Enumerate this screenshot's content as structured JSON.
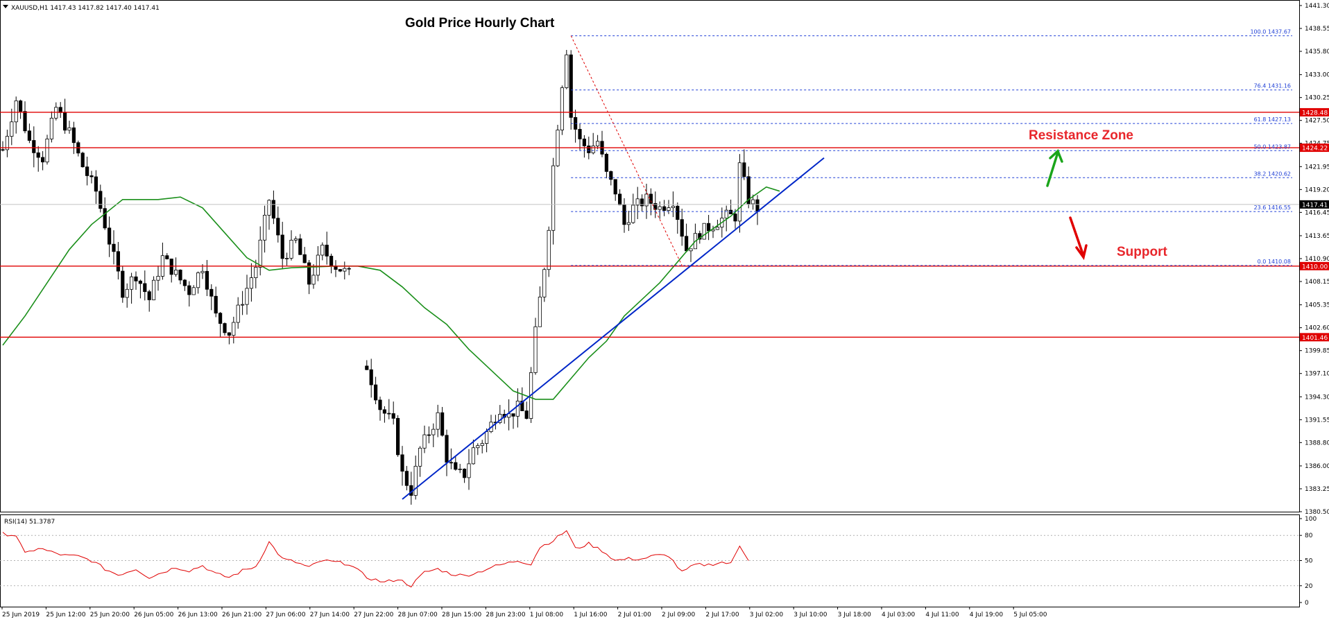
{
  "header": {
    "symbol_line": "XAUUSD,H1  1417.43 1417.82 1417.40 1417.41"
  },
  "chart_data": [
    {
      "type": "candlestick",
      "title": "Gold Price Hourly Chart",
      "symbol": "XAUUSD",
      "timeframe": "H1",
      "last_ohlc": {
        "open": 1417.43,
        "high": 1417.82,
        "low": 1417.4,
        "close": 1417.41
      },
      "last_price_label": "1417.41",
      "ylim": [
        1380.5,
        1441.3
      ],
      "yticks": [
        "1441.30",
        "1438.55",
        "1435.80",
        "1433.00",
        "1430.25",
        "1427.50",
        "1424.75",
        "1421.95",
        "1419.20",
        "1416.45",
        "1413.65",
        "1410.90",
        "1408.15",
        "1405.35",
        "1402.60",
        "1399.85",
        "1397.10",
        "1394.30",
        "1391.55",
        "1388.80",
        "1386.00",
        "1383.25",
        "1380.50"
      ],
      "xlabels": [
        "25 Jun 2019",
        "25 Jun 12:00",
        "25 Jun 20:00",
        "26 Jun 05:00",
        "26 Jun 13:00",
        "26 Jun 21:00",
        "27 Jun 06:00",
        "27 Jun 14:00",
        "27 Jun 22:00",
        "28 Jun 07:00",
        "28 Jun 15:00",
        "28 Jun 23:00",
        "1 Jul 08:00",
        "1 Jul 16:00",
        "2 Jul 01:00",
        "2 Jul 09:00",
        "2 Jul 17:00",
        "3 Jul 02:00",
        "3 Jul 10:00",
        "3 Jul 18:00",
        "4 Jul 03:00",
        "4 Jul 11:00",
        "4 Jul 19:00",
        "5 Jul 05:00"
      ],
      "close_path": [
        [
          0,
          1424
        ],
        [
          3,
          1430
        ],
        [
          6,
          1425
        ],
        [
          9,
          1423
        ],
        [
          12,
          1429
        ],
        [
          15,
          1426
        ],
        [
          18,
          1422
        ],
        [
          21,
          1419
        ],
        [
          24,
          1413
        ],
        [
          27,
          1407
        ],
        [
          30,
          1409
        ],
        [
          33,
          1406
        ],
        [
          36,
          1411
        ],
        [
          39,
          1409
        ],
        [
          42,
          1407
        ],
        [
          45,
          1410
        ],
        [
          48,
          1404
        ],
        [
          51,
          1402
        ],
        [
          54,
          1406
        ],
        [
          57,
          1410
        ],
        [
          60,
          1418
        ],
        [
          63,
          1411
        ],
        [
          66,
          1413
        ],
        [
          69,
          1408
        ],
        [
          72,
          1412
        ],
        [
          75,
          1410
        ],
        [
          78,
          1409
        ],
        [
          82,
          1398
        ],
        [
          85,
          1393
        ],
        [
          88,
          1391
        ],
        [
          90,
          1385
        ],
        [
          92,
          1383
        ],
        [
          94,
          1388
        ],
        [
          96,
          1390
        ],
        [
          98,
          1392
        ],
        [
          100,
          1387
        ],
        [
          102,
          1385
        ],
        [
          104,
          1385
        ],
        [
          106,
          1388
        ],
        [
          108,
          1389
        ],
        [
          110,
          1391
        ],
        [
          112,
          1393
        ],
        [
          114,
          1392
        ],
        [
          116,
          1393
        ],
        [
          118,
          1392
        ],
        [
          119,
          1397
        ],
        [
          120,
          1402
        ],
        [
          121,
          1406
        ],
        [
          122,
          1410
        ],
        [
          123,
          1415
        ],
        [
          124,
          1422
        ],
        [
          125,
          1427
        ],
        [
          126,
          1432
        ],
        [
          127,
          1436
        ],
        [
          128,
          1428
        ],
        [
          130,
          1425
        ],
        [
          132,
          1424
        ],
        [
          134,
          1425
        ],
        [
          136,
          1421
        ],
        [
          138,
          1419
        ],
        [
          140,
          1415
        ],
        [
          142,
          1417
        ],
        [
          145,
          1418
        ],
        [
          148,
          1417
        ],
        [
          151,
          1418
        ],
        [
          154,
          1412
        ],
        [
          157,
          1414
        ],
        [
          160,
          1415
        ],
        [
          163,
          1416
        ],
        [
          165,
          1416
        ],
        [
          166,
          1422
        ],
        [
          168,
          1418
        ],
        [
          170,
          1417
        ]
      ],
      "ma_path": [
        [
          0,
          1400.5
        ],
        [
          5,
          1404
        ],
        [
          10,
          1408
        ],
        [
          15,
          1412
        ],
        [
          20,
          1415
        ],
        [
          27,
          1418
        ],
        [
          35,
          1418
        ],
        [
          40,
          1418.3
        ],
        [
          45,
          1417
        ],
        [
          50,
          1414
        ],
        [
          55,
          1411
        ],
        [
          60,
          1409.5
        ],
        [
          65,
          1409.8
        ],
        [
          75,
          1410
        ],
        [
          80,
          1410
        ],
        [
          85,
          1409.5
        ],
        [
          90,
          1407.5
        ],
        [
          95,
          1405
        ],
        [
          100,
          1403
        ],
        [
          105,
          1400
        ],
        [
          110,
          1397.5
        ],
        [
          115,
          1395
        ],
        [
          120,
          1394
        ],
        [
          124,
          1394
        ],
        [
          128,
          1396.5
        ],
        [
          132,
          1399
        ],
        [
          136,
          1401
        ],
        [
          140,
          1404
        ],
        [
          144,
          1406
        ],
        [
          148,
          1408
        ],
        [
          152,
          1410.5
        ],
        [
          156,
          1413
        ],
        [
          160,
          1414.5
        ],
        [
          164,
          1416
        ],
        [
          168,
          1418
        ],
        [
          172,
          1419.5
        ],
        [
          175,
          1419
        ]
      ],
      "horizontal_levels": [
        {
          "price": 1428.48,
          "label": "1428.48"
        },
        {
          "price": 1424.22,
          "label": "1424.22"
        },
        {
          "price": 1410.0,
          "label": "1410.00"
        },
        {
          "price": 1401.46,
          "label": "1401.46"
        }
      ],
      "fibonacci": [
        {
          "label": "100.0 1437.67",
          "price": 1437.67
        },
        {
          "label": "76.4 1431.16",
          "price": 1431.16
        },
        {
          "label": "61.8 1427.13",
          "price": 1427.13
        },
        {
          "label": "50.0 1423.87",
          "price": 1423.87
        },
        {
          "label": "38.2 1420.62",
          "price": 1420.62
        },
        {
          "label": "23.6 1416.55",
          "price": 1416.55
        },
        {
          "label": "0.0 1410.08",
          "price": 1410.08
        }
      ],
      "fib_anchor": {
        "from": [
          128,
          1437.67
        ],
        "to": [
          153,
          1410.08
        ]
      },
      "trendline": {
        "from": [
          90,
          1382
        ],
        "to": [
          185,
          1423
        ]
      },
      "annotations": [
        "Resistance Zone",
        "Support"
      ],
      "series_colors": {
        "candles": "#000000",
        "ma": "#1a8f1a",
        "levels": "#e00000",
        "trend": "#0026c8",
        "fib": "#1f3fd6"
      }
    },
    {
      "type": "line",
      "title": "RSI(14) 51.3787",
      "ylim": [
        0,
        100
      ],
      "yticks": [
        "100",
        "80",
        "50",
        "20",
        "0"
      ],
      "levels": [
        80,
        50,
        20
      ],
      "series": [
        {
          "name": "RSI(14)",
          "color": "#e00000",
          "values": [
            [
              0,
              82
            ],
            [
              3,
              80
            ],
            [
              5,
              58
            ],
            [
              8,
              65
            ],
            [
              11,
              60
            ],
            [
              14,
              56
            ],
            [
              17,
              55
            ],
            [
              20,
              50
            ],
            [
              23,
              40
            ],
            [
              26,
              33
            ],
            [
              30,
              40
            ],
            [
              33,
              30
            ],
            [
              36,
              36
            ],
            [
              39,
              42
            ],
            [
              42,
              38
            ],
            [
              45,
              44
            ],
            [
              48,
              34
            ],
            [
              51,
              30
            ],
            [
              54,
              38
            ],
            [
              57,
              43
            ],
            [
              60,
              72
            ],
            [
              63,
              52
            ],
            [
              66,
              48
            ],
            [
              69,
              42
            ],
            [
              72,
              50
            ],
            [
              75,
              48
            ],
            [
              78,
              46
            ],
            [
              82,
              30
            ],
            [
              86,
              24
            ],
            [
              89,
              28
            ],
            [
              92,
              20
            ],
            [
              95,
              36
            ],
            [
              98,
              40
            ],
            [
              101,
              34
            ],
            [
              104,
              32
            ],
            [
              107,
              36
            ],
            [
              110,
              42
            ],
            [
              113,
              46
            ],
            [
              116,
              50
            ],
            [
              119,
              46
            ],
            [
              121,
              66
            ],
            [
              124,
              74
            ],
            [
              127,
              86
            ],
            [
              129,
              64
            ],
            [
              132,
              70
            ],
            [
              135,
              62
            ],
            [
              138,
              50
            ],
            [
              141,
              52
            ],
            [
              144,
              52
            ],
            [
              147,
              56
            ],
            [
              150,
              56
            ],
            [
              153,
              36
            ],
            [
              156,
              45
            ],
            [
              159,
              45
            ],
            [
              162,
              48
            ],
            [
              164,
              46
            ],
            [
              166,
              68
            ],
            [
              168,
              51.38
            ]
          ]
        }
      ]
    }
  ]
}
